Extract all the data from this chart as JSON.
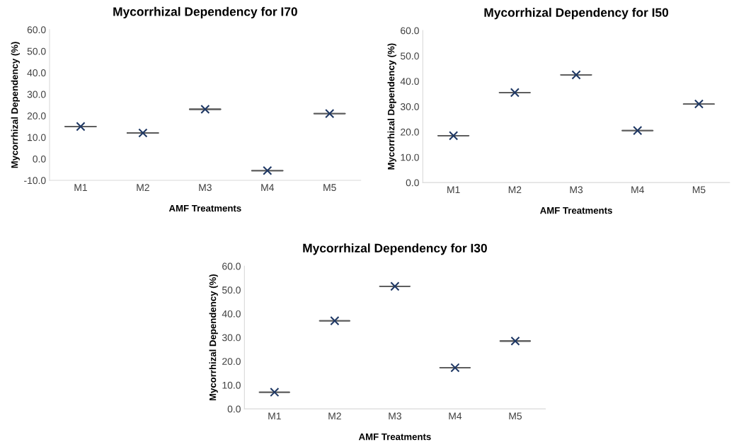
{
  "chart_data": [
    {
      "type": "scatter",
      "title": "Mycorrhizal Dependency for I70",
      "xlabel": "AMF Treatments",
      "ylabel": "Mycorrhizal Dependency (%)",
      "categories": [
        "M1",
        "M2",
        "M3",
        "M4",
        "M5"
      ],
      "series": [
        {
          "type": "box",
          "color": "#595959",
          "boxes": [
            {
              "low": 15,
              "q1": 15,
              "median": 15,
              "q3": 15,
              "high": 15
            },
            {
              "low": 12,
              "q1": 12,
              "median": 12,
              "q3": 12,
              "high": 12
            },
            {
              "low": 23,
              "q1": 23,
              "median": 23,
              "q3": 23,
              "high": 23
            },
            {
              "low": -5.5,
              "q1": -5.5,
              "median": -5.5,
              "q3": -5.5,
              "high": -5.5
            },
            {
              "low": 21,
              "q1": 21,
              "median": 21,
              "q3": 21,
              "high": 21
            }
          ]
        },
        {
          "color": "#1f3864",
          "values": [
            15,
            12,
            23,
            -5.5,
            21
          ]
        }
      ],
      "ylim": [
        -10,
        60
      ],
      "yticks": [
        {
          "value": -10,
          "label": "-10.0"
        },
        {
          "value": 0,
          "label": "0.0"
        },
        {
          "value": 10,
          "label": "10.0"
        },
        {
          "value": 20,
          "label": "20.0"
        },
        {
          "value": 30,
          "label": "30.0"
        },
        {
          "value": 40,
          "label": "40.0"
        },
        {
          "value": 50,
          "label": "50.0"
        },
        {
          "value": 60,
          "label": "60.0"
        }
      ],
      "marker": "cross",
      "grid": false
    },
    {
      "type": "scatter",
      "title": "Mycorrhizal Dependency for I50",
      "xlabel": "AMF Treatments",
      "ylabel": "Mycorrhizal Dependency (%)",
      "categories": [
        "M1",
        "M2",
        "M3",
        "M4",
        "M5"
      ],
      "series": [
        {
          "type": "box",
          "color": "#595959",
          "boxes": [
            {
              "low": 18.5,
              "q1": 18.5,
              "median": 18.5,
              "q3": 18.5,
              "high": 18.5
            },
            {
              "low": 35.5,
              "q1": 35.5,
              "median": 35.5,
              "q3": 35.5,
              "high": 35.5
            },
            {
              "low": 42.5,
              "q1": 42.5,
              "median": 42.5,
              "q3": 42.5,
              "high": 42.5
            },
            {
              "low": 20.5,
              "q1": 20.5,
              "median": 20.5,
              "q3": 20.5,
              "high": 20.5
            },
            {
              "low": 31,
              "q1": 31,
              "median": 31,
              "q3": 31,
              "high": 31
            }
          ]
        },
        {
          "color": "#1f3864",
          "values": [
            18.5,
            35.5,
            42.5,
            20.5,
            31
          ]
        }
      ],
      "ylim": [
        0,
        60
      ],
      "yticks": [
        {
          "value": 0,
          "label": "0.0"
        },
        {
          "value": 10,
          "label": "10.0"
        },
        {
          "value": 20,
          "label": "20.0"
        },
        {
          "value": 30,
          "label": "30.0"
        },
        {
          "value": 40,
          "label": "40.0"
        },
        {
          "value": 50,
          "label": "50.0"
        },
        {
          "value": 60,
          "label": "60.0"
        }
      ],
      "marker": "cross",
      "grid": false
    },
    {
      "type": "scatter",
      "title": "Mycorrhizal Dependency for I30",
      "xlabel": "AMF Treatments",
      "ylabel": "Mycorrhizal Dependency (%)",
      "categories": [
        "M1",
        "M2",
        "M3",
        "M4",
        "M5"
      ],
      "series": [
        {
          "type": "box",
          "color": "#595959",
          "boxes": [
            {
              "low": 7,
              "q1": 7,
              "median": 7,
              "q3": 7,
              "high": 7
            },
            {
              "low": 37,
              "q1": 37,
              "median": 37,
              "q3": 37,
              "high": 37
            },
            {
              "low": 51.5,
              "q1": 51.5,
              "median": 51.5,
              "q3": 51.5,
              "high": 51.5
            },
            {
              "low": 17.3,
              "q1": 17.3,
              "median": 17.3,
              "q3": 17.3,
              "high": 17.3
            },
            {
              "low": 28.5,
              "q1": 28.5,
              "median": 28.5,
              "q3": 28.5,
              "high": 28.5
            }
          ]
        },
        {
          "color": "#1f3864",
          "values": [
            7,
            37,
            51.5,
            17.3,
            28.5
          ]
        }
      ],
      "ylim": [
        0,
        60
      ],
      "yticks": [
        {
          "value": 0,
          "label": "0.0"
        },
        {
          "value": 10,
          "label": "10.0"
        },
        {
          "value": 20,
          "label": "20.0"
        },
        {
          "value": 30,
          "label": "30.0"
        },
        {
          "value": 40,
          "label": "40.0"
        },
        {
          "value": 50,
          "label": "50.0"
        },
        {
          "value": 60,
          "label": "60.0"
        }
      ],
      "marker": "cross",
      "grid": false
    }
  ]
}
